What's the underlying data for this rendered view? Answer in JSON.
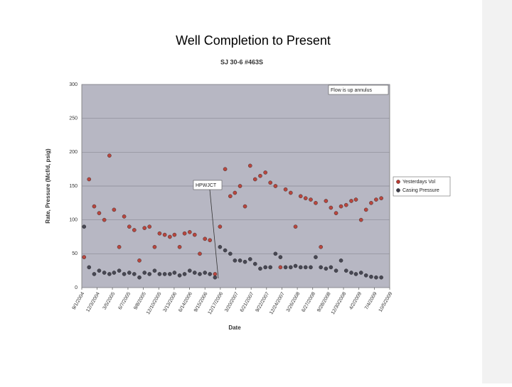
{
  "slide_title": "Well Completion to Present",
  "chart_data": {
    "type": "scatter",
    "title": "SJ 30-6 #463S",
    "xlabel": "Date",
    "ylabel": "Rate, Pressure (Mcf/d, psig)",
    "annotations": [
      "Flow is up annulus",
      "HPWJCT"
    ],
    "legend": "right",
    "grid": true,
    "ylim": [
      0,
      300
    ],
    "yticks": [
      0,
      50,
      100,
      150,
      200,
      250,
      300
    ],
    "xlim": [
      "9/1/2004",
      "10/5/2009"
    ],
    "xticks": [
      "9/1/2004",
      "12/3/2004",
      "3/5/2005",
      "6/7/2005",
      "9/8/2005",
      "12/10/2005",
      "3/13/2006",
      "6/14/2006",
      "9/15/2006",
      "12/17/2006",
      "3/20/2007",
      "6/21/2007",
      "9/22/2007",
      "12/24/2007",
      "3/26/2008",
      "6/27/2008",
      "9/28/2008",
      "12/30/2008",
      "4/2/2009",
      "7/4/2009",
      "10/5/2009"
    ],
    "x": [
      "9/15/2004",
      "10/15/2004",
      "11/15/2004",
      "12/15/2004",
      "1/15/2005",
      "2/15/2005",
      "3/15/2005",
      "4/15/2005",
      "5/15/2005",
      "6/15/2005",
      "7/15/2005",
      "8/15/2005",
      "9/15/2005",
      "10/15/2005",
      "11/15/2005",
      "12/15/2005",
      "1/15/2006",
      "2/15/2006",
      "3/15/2006",
      "4/15/2006",
      "5/15/2006",
      "6/15/2006",
      "7/15/2006",
      "8/15/2006",
      "9/15/2006",
      "10/15/2006",
      "11/15/2006",
      "12/15/2006",
      "1/15/2007",
      "2/15/2007",
      "3/15/2007",
      "4/15/2007",
      "5/15/2007",
      "6/15/2007",
      "7/15/2007",
      "8/15/2007",
      "9/15/2007",
      "10/15/2007",
      "11/15/2007",
      "12/15/2007",
      "1/15/2008",
      "2/15/2008",
      "3/15/2008",
      "4/15/2008",
      "5/15/2008",
      "6/15/2008",
      "7/15/2008",
      "8/15/2008",
      "9/15/2008",
      "10/15/2008",
      "11/15/2008",
      "12/15/2008",
      "1/15/2009",
      "2/15/2009",
      "3/15/2009",
      "4/15/2009",
      "5/15/2009",
      "6/15/2009",
      "7/15/2009",
      "8/15/2009"
    ],
    "series": [
      {
        "name": "Yesterdays Vol",
        "color": "#b83a30",
        "values": [
          45,
          160,
          120,
          110,
          100,
          195,
          115,
          60,
          105,
          90,
          85,
          40,
          88,
          90,
          60,
          80,
          78,
          75,
          78,
          60,
          80,
          82,
          78,
          50,
          72,
          70,
          20,
          90,
          175,
          135,
          140,
          150,
          120,
          180,
          160,
          165,
          170,
          155,
          150,
          30,
          145,
          140,
          90,
          135,
          132,
          130,
          125,
          60,
          128,
          118,
          110,
          120,
          122,
          128,
          130,
          100,
          115,
          125,
          130,
          132
        ]
      },
      {
        "name": "Casing Pressure",
        "color": "#3c3c48",
        "values": [
          90,
          30,
          20,
          25,
          22,
          20,
          22,
          25,
          20,
          22,
          20,
          15,
          22,
          20,
          25,
          20,
          20,
          20,
          22,
          18,
          20,
          25,
          22,
          20,
          22,
          20,
          15,
          60,
          55,
          50,
          40,
          40,
          38,
          42,
          35,
          28,
          30,
          30,
          50,
          45,
          30,
          30,
          32,
          30,
          30,
          30,
          45,
          30,
          28,
          30,
          25,
          40,
          25,
          22,
          20,
          22,
          18,
          16,
          15,
          15
        ]
      }
    ]
  }
}
